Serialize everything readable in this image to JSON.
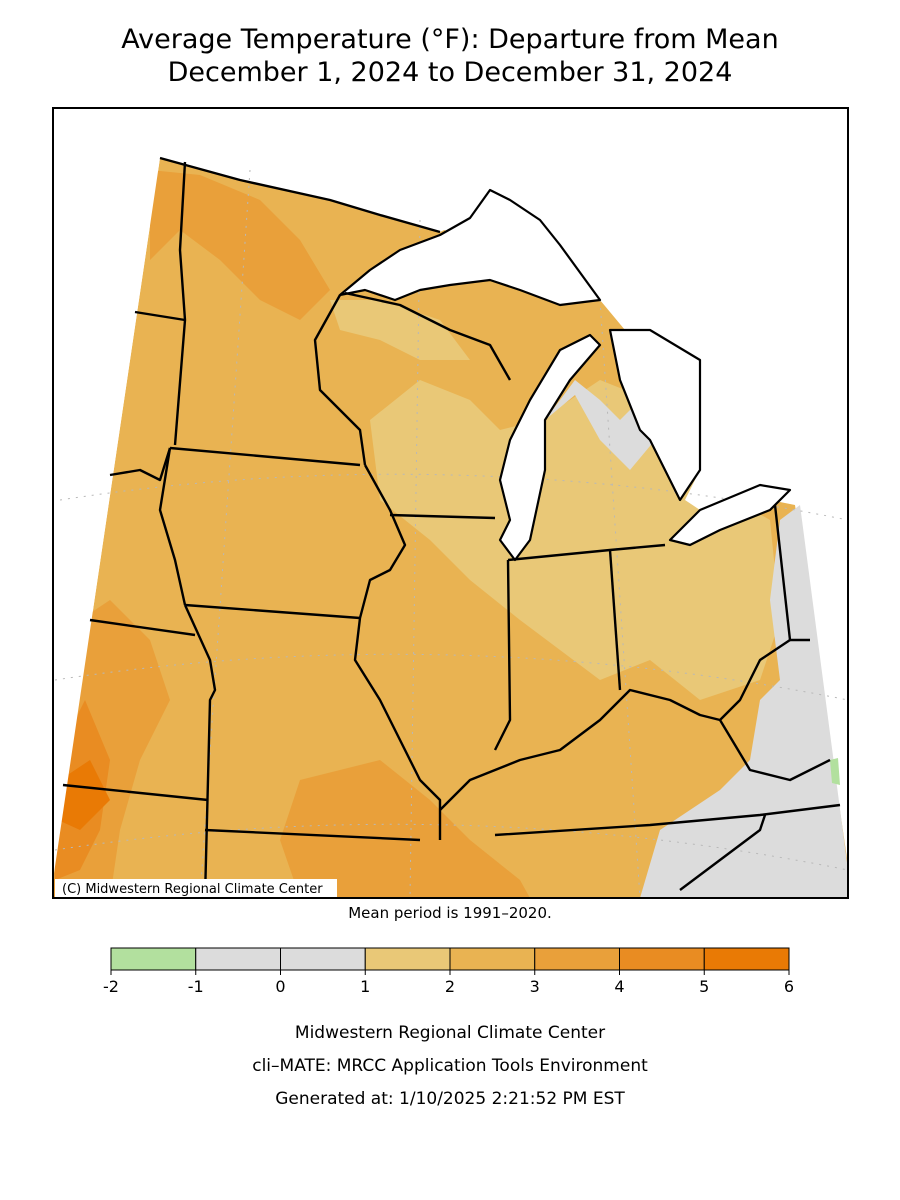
{
  "title": [
    "Average Temperature (°F): Departure from Mean",
    "December 1, 2024 to December 31, 2024"
  ],
  "copyright": "(C) Midwestern Regional Climate Center",
  "mean_period": "Mean period is 1991–2020.",
  "legend": {
    "bins": [
      -2,
      -1,
      0,
      1,
      2,
      3,
      4,
      5,
      6
    ],
    "colors": [
      "#b2e09e",
      "#dcdcdc",
      "#dcdcdc",
      "#e9c877",
      "#e9b352",
      "#e9a03a",
      "#e98c22",
      "#e97a05"
    ]
  },
  "footer": [
    "Midwestern Regional Climate Center",
    "cli–MATE: MRCC Application Tools Environment",
    "Generated at: 1/10/2025 2:21:52 PM EST"
  ]
}
